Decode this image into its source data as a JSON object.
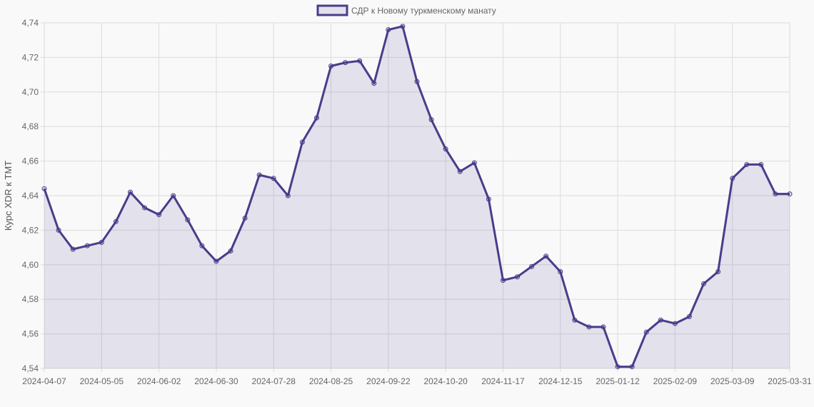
{
  "chart_data": {
    "type": "area",
    "title": "",
    "xlabel": "",
    "ylabel": "Курс XDR к TMT",
    "ylim": [
      4.54,
      4.74
    ],
    "y_ticks": [
      "4,54",
      "4,56",
      "4,58",
      "4,60",
      "4,62",
      "4,64",
      "4,66",
      "4,68",
      "4,70",
      "4,72",
      "4,74"
    ],
    "x_tick_labels": [
      "2024-04-07",
      "2024-05-05",
      "2024-06-02",
      "2024-06-30",
      "2024-07-28",
      "2024-08-25",
      "2024-09-22",
      "2024-10-20",
      "2024-11-17",
      "2024-12-15",
      "2025-01-12",
      "2025-02-09",
      "2025-03-09",
      "2025-03-31"
    ],
    "grid": true,
    "legend_position": "top",
    "colors": {
      "line": "#483d8b",
      "fill": "rgba(72,61,139,0.12)",
      "grid": "#dcdcdc"
    },
    "x": [
      "2024-04-07",
      "2024-04-14",
      "2024-04-21",
      "2024-04-28",
      "2024-05-05",
      "2024-05-12",
      "2024-05-19",
      "2024-05-26",
      "2024-06-02",
      "2024-06-09",
      "2024-06-16",
      "2024-06-23",
      "2024-06-30",
      "2024-07-07",
      "2024-07-14",
      "2024-07-21",
      "2024-07-28",
      "2024-08-04",
      "2024-08-11",
      "2024-08-18",
      "2024-08-25",
      "2024-09-01",
      "2024-09-08",
      "2024-09-15",
      "2024-09-22",
      "2024-09-29",
      "2024-10-06",
      "2024-10-13",
      "2024-10-20",
      "2024-10-27",
      "2024-11-03",
      "2024-11-10",
      "2024-11-17",
      "2024-11-24",
      "2024-12-01",
      "2024-12-08",
      "2024-12-15",
      "2024-12-22",
      "2024-12-29",
      "2025-01-05",
      "2025-01-12",
      "2025-01-19",
      "2025-01-26",
      "2025-02-02",
      "2025-02-09",
      "2025-02-16",
      "2025-02-23",
      "2025-03-02",
      "2025-03-09",
      "2025-03-16",
      "2025-03-23",
      "2025-03-30",
      "2025-03-31"
    ],
    "series": [
      {
        "name": "СДР к Новому туркменскому манату",
        "values": [
          4.644,
          4.62,
          4.609,
          4.611,
          4.613,
          4.625,
          4.642,
          4.633,
          4.629,
          4.64,
          4.626,
          4.611,
          4.602,
          4.608,
          4.627,
          4.652,
          4.65,
          4.64,
          4.671,
          4.685,
          4.715,
          4.717,
          4.718,
          4.705,
          4.736,
          4.738,
          4.706,
          4.684,
          4.667,
          4.654,
          4.659,
          4.638,
          4.591,
          4.593,
          4.599,
          4.605,
          4.596,
          4.568,
          4.564,
          4.564,
          4.541,
          4.541,
          4.561,
          4.568,
          4.566,
          4.57,
          4.589,
          4.596,
          4.65,
          4.658,
          4.658,
          4.641,
          4.641
        ]
      }
    ]
  }
}
